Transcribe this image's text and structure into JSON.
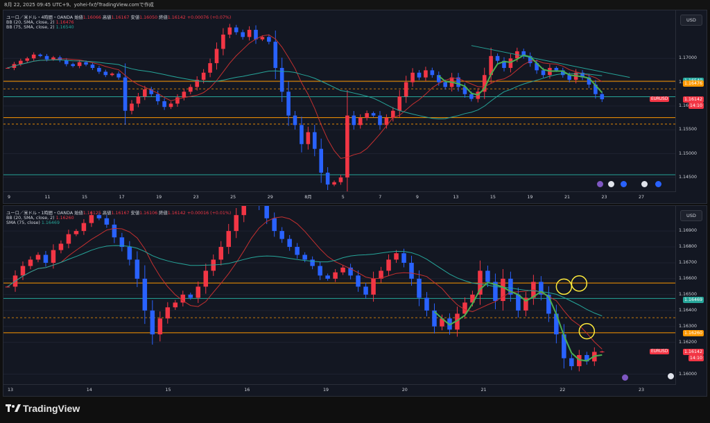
{
  "topbar": {
    "text": "8月 22, 2025 09:45 UTC+9、yohei-fxがTradingView.comで作成"
  },
  "footer": {
    "brand": "TradingView"
  },
  "colors": {
    "up": "#f23645",
    "down": "#2962ff",
    "bb": "#c53030",
    "sma": "#26a69a",
    "orange": "#ff9800",
    "green": "#4caf50",
    "circle": "#ffeb3b"
  },
  "chart_data": [
    {
      "type": "line",
      "title": "ユーロ／米ドル・4時間・OANDA",
      "ohlc": {
        "open_label": "始値",
        "open": "1.16066",
        "high_label": "高値",
        "high": "1.16167",
        "low_label": "安値",
        "low": "1.16050",
        "close_label": "終値",
        "close": "1.16142",
        "change": "+0.00076 (+0.07%)"
      },
      "indicators": [
        {
          "name": "BB (20, SMA, close, 2)",
          "value": "1.16476"
        },
        {
          "name": "BB (75, SMA, close, 2)",
          "value": "1.16540"
        }
      ],
      "currency": "USD",
      "x_ticks": [
        "9",
        "11",
        "15",
        "17",
        "19",
        "23",
        "25",
        "29",
        "8月",
        "5",
        "7",
        "9",
        "13",
        "15",
        "19",
        "21",
        "23",
        "27"
      ],
      "y_ticks": [
        "1.17000",
        "1.16500",
        "1.16000",
        "1.15500",
        "1.15000",
        "1.14500"
      ],
      "ylim": [
        1.1425,
        1.1795
      ],
      "horizontal_levels": [
        1.1652,
        1.16195,
        1.15755,
        1.14555
      ],
      "dashed_levels": [
        1.1636,
        1.1562
      ],
      "price_labels": [
        {
          "text": "1.16540",
          "price": 1.1654
        },
        {
          "text": "1.16476",
          "price": 1.16476
        }
      ],
      "symbol_label": {
        "text": "EURUSD",
        "price": "1.16142",
        "time": "14:10"
      },
      "close_series": [
        1.168,
        1.1688,
        1.1695,
        1.17,
        1.1708,
        1.1705,
        1.1698,
        1.1702,
        1.1696,
        1.1688,
        1.1684,
        1.1692,
        1.1687,
        1.168,
        1.1672,
        1.1665,
        1.1668,
        1.166,
        1.159,
        1.1605,
        1.162,
        1.1635,
        1.1625,
        1.161,
        1.1598,
        1.1605,
        1.1618,
        1.163,
        1.164,
        1.1655,
        1.167,
        1.169,
        1.172,
        1.175,
        1.1765,
        1.1755,
        1.1745,
        1.176,
        1.174,
        1.1745,
        1.1735,
        1.168,
        1.163,
        1.158,
        1.156,
        1.152,
        1.1545,
        1.151,
        1.146,
        1.1435,
        1.144,
        1.145,
        1.158,
        1.156,
        1.1575,
        1.1585,
        1.158,
        1.156,
        1.1575,
        1.159,
        1.162,
        1.165,
        1.167,
        1.166,
        1.1675,
        1.1665,
        1.165,
        1.164,
        1.166,
        1.164,
        1.1625,
        1.1615,
        1.163,
        1.1665,
        1.1705,
        1.1695,
        1.168,
        1.17,
        1.1715,
        1.1705,
        1.169,
        1.1675,
        1.1665,
        1.168,
        1.1675,
        1.1665,
        1.1655,
        1.167,
        1.166,
        1.1645,
        1.1625,
        1.16142
      ]
    },
    {
      "type": "line",
      "title": "ユーロ／米ドル・1時間・OANDA",
      "ohlc": {
        "open_label": "始値",
        "open": "1.16125",
        "high_label": "高値",
        "high": "1.16167",
        "low_label": "安値",
        "low": "1.16106",
        "close_label": "終値",
        "close": "1.16142",
        "change": "+0.00016 (+0.01%)"
      },
      "indicators": [
        {
          "name": "BB (20, SMA, close, 2)",
          "value": "1.16260"
        },
        {
          "name": "SMA (75, close)",
          "value": "1.16469"
        }
      ],
      "currency": "USD",
      "x_ticks": [
        "13",
        "14",
        "15",
        "16",
        "19",
        "20",
        "21",
        "22",
        "23"
      ],
      "y_ticks": [
        "1.16900",
        "1.16800",
        "1.16700",
        "1.16600",
        "1.16500",
        "1.16400",
        "1.16300",
        "1.16200",
        "1.16000"
      ],
      "ylim": [
        1.1595,
        1.1704
      ],
      "horizontal_levels": [
        1.16573,
        1.16476,
        1.1626
      ],
      "dashed_levels": [
        1.16355
      ],
      "price_labels": [
        {
          "text": "1.16469",
          "price": 1.16469
        },
        {
          "text": "1.16260",
          "price": 1.1626
        }
      ],
      "symbol_label": {
        "text": "EURUSD",
        "price": "1.16142",
        "time": "14:10"
      },
      "close_series": [
        1.1655,
        1.1662,
        1.1668,
        1.1672,
        1.1675,
        1.167,
        1.1678,
        1.1682,
        1.1688,
        1.169,
        1.1695,
        1.17,
        1.1698,
        1.1694,
        1.1686,
        1.168,
        1.1672,
        1.166,
        1.164,
        1.1625,
        1.1635,
        1.1642,
        1.1645,
        1.165,
        1.1648,
        1.1655,
        1.1665,
        1.1672,
        1.168,
        1.169,
        1.17,
        1.171,
        1.1712,
        1.1706,
        1.1698,
        1.169,
        1.1685,
        1.168,
        1.1675,
        1.1672,
        1.1668,
        1.1662,
        1.166,
        1.1664,
        1.1667,
        1.1662,
        1.1655,
        1.165,
        1.166,
        1.1665,
        1.1672,
        1.1676,
        1.167,
        1.166,
        1.1648,
        1.164,
        1.163,
        1.1635,
        1.1628,
        1.1638,
        1.1645,
        1.165,
        1.1665,
        1.1658,
        1.1646,
        1.166,
        1.165,
        1.164,
        1.1648,
        1.1658,
        1.165,
        1.1638,
        1.1625,
        1.161,
        1.1605,
        1.1612,
        1.1608,
        1.1614,
        1.16142
      ]
    }
  ]
}
